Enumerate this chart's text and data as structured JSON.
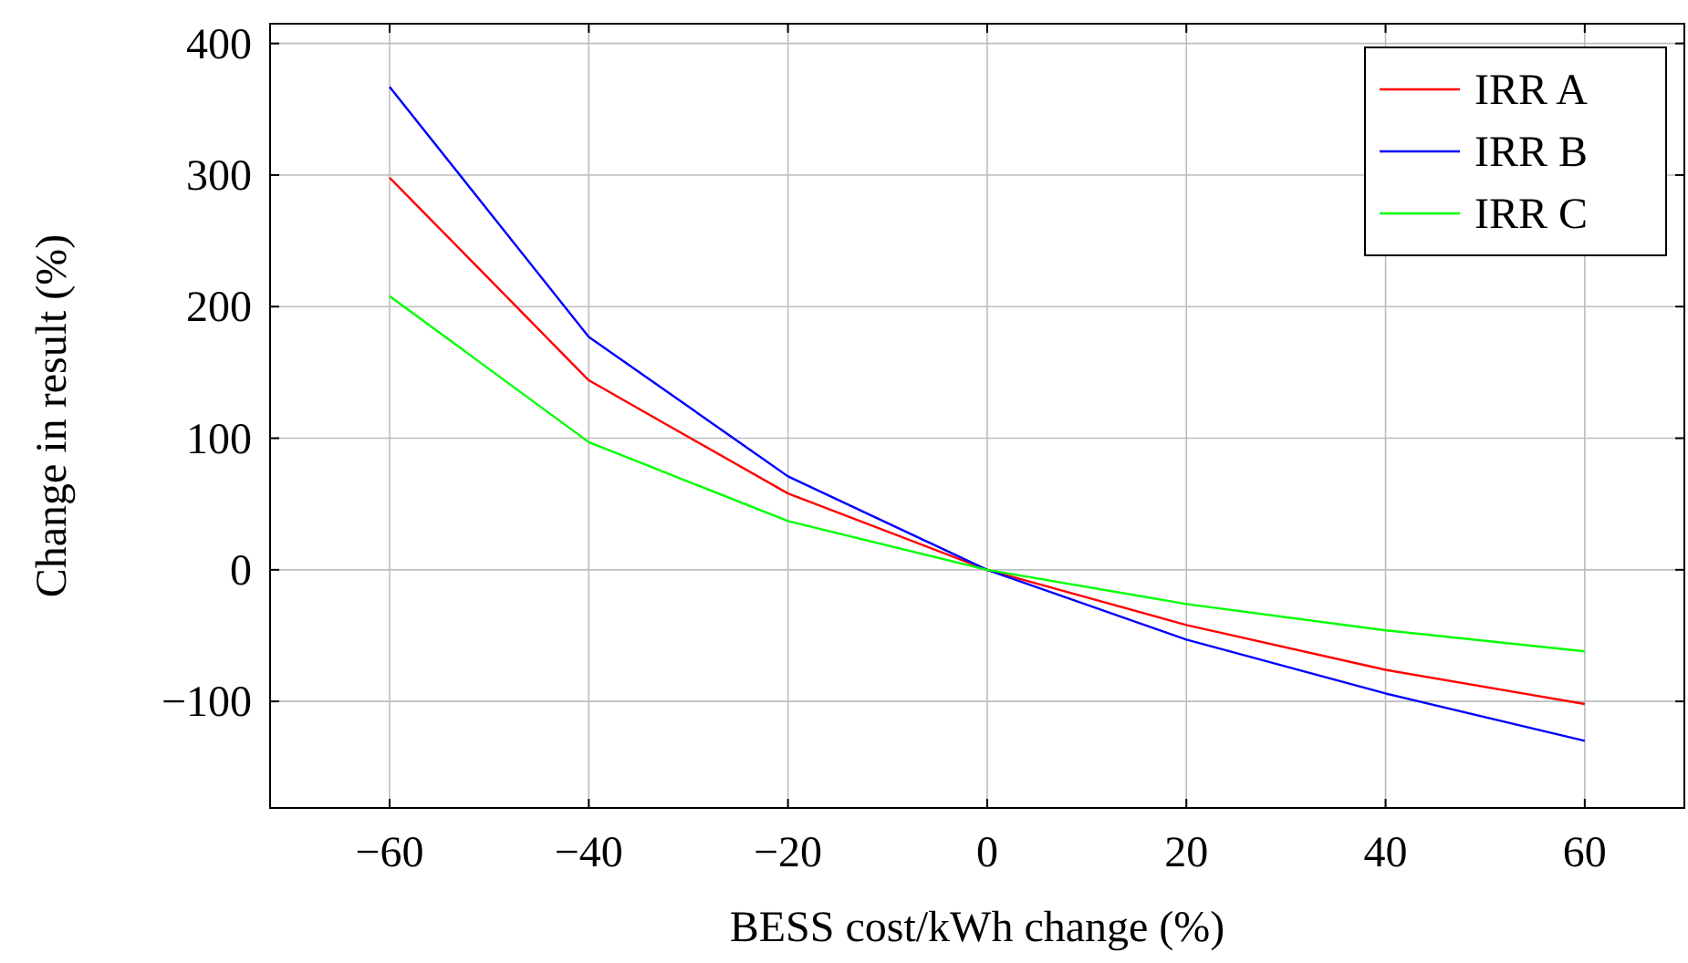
{
  "chart_data": {
    "type": "line",
    "xlabel": "BESS cost/kWh change (%)",
    "ylabel": "Change in result (%)",
    "x": [
      -60,
      -40,
      -20,
      0,
      20,
      40,
      60
    ],
    "series": [
      {
        "name": "IRR A",
        "color": "#ff0000",
        "values": [
          298,
          144,
          58,
          0,
          -42,
          -76,
          -102
        ]
      },
      {
        "name": "IRR B",
        "color": "#0000ff",
        "values": [
          367,
          177,
          71,
          0,
          -53,
          -94,
          -130
        ]
      },
      {
        "name": "IRR C",
        "color": "#00ff00",
        "values": [
          208,
          97,
          37,
          0,
          -26,
          -46,
          -62
        ]
      }
    ],
    "xlim": [
      -72,
      70
    ],
    "ylim": [
      -181,
      415
    ],
    "xticks": [
      {
        "value": -60,
        "label": "−60"
      },
      {
        "value": -40,
        "label": "−40"
      },
      {
        "value": -20,
        "label": "−20"
      },
      0,
      20,
      40,
      60
    ],
    "yticks": [
      {
        "value": -100,
        "label": "−100"
      },
      0,
      100,
      200,
      300,
      400
    ],
    "grid": true,
    "legend": "top right",
    "marker": "none",
    "line_style": "solid"
  }
}
